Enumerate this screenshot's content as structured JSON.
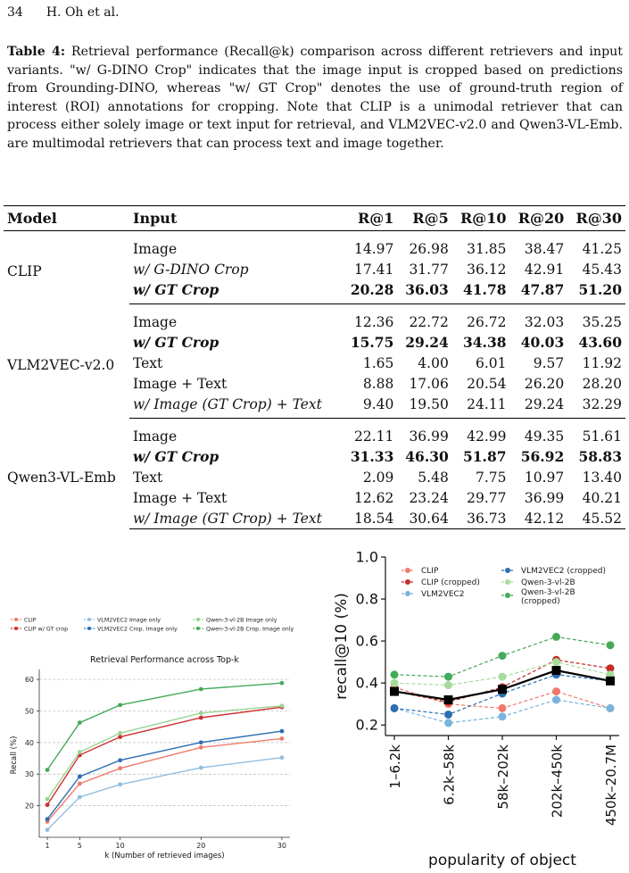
{
  "header": {
    "page_number": "34",
    "authors": "H. Oh et al."
  },
  "caption": {
    "label": "Table 4:",
    "text": "Retrieval performance (Recall@k) comparison across different retrievers and input variants. \"w/ G-DINO Crop\" indicates that the image input is cropped based on predictions from Grounding-DINO, whereas \"w/ GT Crop\" denotes the use of ground-truth region of interest (ROI) annotations for cropping. Note that CLIP is a unimodal retriever that can process either solely image or text input for retrieval, and VLM2VEC-v2.0 and Qwen3-VL-Emb. are multimodal retrievers that can process text and image together."
  },
  "table": {
    "headers": [
      "Model",
      "Input",
      "R@1",
      "R@5",
      "R@10",
      "R@20",
      "R@30"
    ],
    "groups": [
      {
        "model": "CLIP",
        "rows": [
          {
            "input": "Image",
            "italic": false,
            "bold": false,
            "values": [
              "14.97",
              "26.98",
              "31.85",
              "38.47",
              "41.25"
            ]
          },
          {
            "input": "w/ G-DINO Crop",
            "italic": true,
            "bold": false,
            "values": [
              "17.41",
              "31.77",
              "36.12",
              "42.91",
              "45.43"
            ]
          },
          {
            "input": "w/ GT Crop",
            "italic": true,
            "bold": true,
            "values": [
              "20.28",
              "36.03",
              "41.78",
              "47.87",
              "51.20"
            ]
          }
        ]
      },
      {
        "model": "VLM2VEC-v2.0",
        "rows": [
          {
            "input": "Image",
            "italic": false,
            "bold": false,
            "values": [
              "12.36",
              "22.72",
              "26.72",
              "32.03",
              "35.25"
            ]
          },
          {
            "input": "w/ GT Crop",
            "italic": true,
            "bold": true,
            "values": [
              "15.75",
              "29.24",
              "34.38",
              "40.03",
              "43.60"
            ]
          },
          {
            "input": "Text",
            "italic": false,
            "bold": false,
            "values": [
              "1.65",
              "4.00",
              "6.01",
              "9.57",
              "11.92"
            ]
          },
          {
            "input": "Image + Text",
            "italic": false,
            "bold": false,
            "values": [
              "8.88",
              "17.06",
              "20.54",
              "26.20",
              "28.20"
            ]
          },
          {
            "input": "w/ Image (GT Crop) + Text",
            "italic": true,
            "bold": false,
            "values": [
              "9.40",
              "19.50",
              "24.11",
              "29.24",
              "32.29"
            ]
          }
        ]
      },
      {
        "model": "Qwen3-VL-Emb",
        "rows": [
          {
            "input": "Image",
            "italic": false,
            "bold": false,
            "values": [
              "22.11",
              "36.99",
              "42.99",
              "49.35",
              "51.61"
            ]
          },
          {
            "input": "w/ GT Crop",
            "italic": true,
            "bold": true,
            "values": [
              "31.33",
              "46.30",
              "51.87",
              "56.92",
              "58.83"
            ]
          },
          {
            "input": "Text",
            "italic": false,
            "bold": false,
            "values": [
              "2.09",
              "5.48",
              "7.75",
              "10.97",
              "13.40"
            ]
          },
          {
            "input": "Image + Text",
            "italic": false,
            "bold": false,
            "values": [
              "12.62",
              "23.24",
              "29.77",
              "36.99",
              "40.21"
            ]
          },
          {
            "input": "w/ Image (GT Crop) + Text",
            "italic": true,
            "bold": false,
            "values": [
              "18.54",
              "30.64",
              "36.73",
              "42.12",
              "45.52"
            ]
          }
        ]
      }
    ]
  },
  "chart_data": [
    {
      "type": "line",
      "title": "Retrieval Performance across Top-k",
      "xlabel": "k (Number of retrieved images)",
      "ylabel": "Recall (%)",
      "x": [
        1,
        5,
        10,
        20,
        30
      ],
      "xticks": [
        1,
        5,
        10,
        20,
        30
      ],
      "yticks": [
        20,
        30,
        40,
        50,
        60
      ],
      "xlim": [
        0,
        31
      ],
      "ylim": [
        10,
        62
      ],
      "grid": "horizontal dashed",
      "legend": "top",
      "series": [
        {
          "name": "CLIP",
          "color": "#f07a6a",
          "dashed": false,
          "values": [
            14.97,
            26.98,
            31.85,
            38.47,
            41.25
          ]
        },
        {
          "name": "CLIP w/ GT crop",
          "color": "#d03030",
          "dashed": false,
          "values": [
            20.28,
            36.03,
            41.78,
            47.87,
            51.2
          ]
        },
        {
          "name": "VLM2VEC2 Image only",
          "color": "#92bede",
          "dashed": false,
          "values": [
            12.36,
            22.72,
            26.72,
            32.03,
            35.25
          ]
        },
        {
          "name": "VLM2VEC2 Crop. Image only",
          "color": "#2c6fb0",
          "dashed": false,
          "values": [
            15.75,
            29.24,
            34.38,
            40.03,
            43.6
          ]
        },
        {
          "name": "Qwen-3-vl-2B Image only",
          "color": "#98d492",
          "dashed": false,
          "values": [
            22.11,
            36.99,
            42.99,
            49.35,
            51.61
          ]
        },
        {
          "name": "Qwen-3-vl-2B Crop. Image only",
          "color": "#44aa5a",
          "dashed": false,
          "values": [
            31.33,
            46.3,
            51.87,
            56.92,
            58.83
          ]
        }
      ]
    },
    {
      "type": "line",
      "title": "",
      "xlabel": "popularity of object",
      "ylabel": "recall@10 (%)",
      "categories": [
        "1–6.2k",
        "6.2k–58k",
        "58k–202k",
        "202k–450k",
        "450k–20.7M"
      ],
      "yticks": [
        0.2,
        0.4,
        0.6,
        0.8,
        1.0
      ],
      "ylim": [
        0.15,
        1.0
      ],
      "grid": "off",
      "legend": "top",
      "series": [
        {
          "name": "CLIP",
          "color": "#f07a6a",
          "dashed": true,
          "values": [
            0.38,
            0.3,
            0.28,
            0.36,
            0.28
          ]
        },
        {
          "name": "CLIP (cropped)",
          "color": "#c82a2a",
          "dashed": true,
          "values": [
            0.36,
            0.31,
            0.38,
            0.51,
            0.47
          ]
        },
        {
          "name": "VLM2VEC2",
          "color": "#7ab4dc",
          "dashed": true,
          "values": [
            0.28,
            0.21,
            0.24,
            0.32,
            0.28
          ]
        },
        {
          "name": "VLM2VEC2 (cropped)",
          "color": "#2c6fb0",
          "dashed": true,
          "values": [
            0.28,
            0.25,
            0.35,
            0.44,
            0.41
          ]
        },
        {
          "name": "Qwen-3-vl-2B",
          "color": "#a6dc9a",
          "dashed": true,
          "values": [
            0.4,
            0.39,
            0.43,
            0.5,
            0.44
          ]
        },
        {
          "name": "Qwen-3-vl-2B (cropped)",
          "color": "#44aa5a",
          "dashed": true,
          "values": [
            0.44,
            0.43,
            0.53,
            0.62,
            0.58
          ]
        },
        {
          "color": "#000000",
          "dashed": false,
          "square": true,
          "values": [
            0.36,
            0.32,
            0.37,
            0.46,
            0.41
          ]
        }
      ]
    }
  ]
}
